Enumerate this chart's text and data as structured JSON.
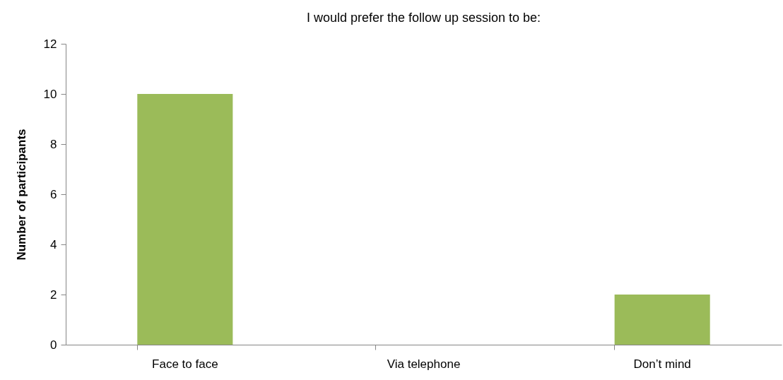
{
  "chart_data": {
    "type": "bar",
    "title": "I would prefer the follow up session to be:",
    "ylabel": "Number of participants",
    "categories": [
      "Face to face",
      "Via telephone",
      "Don’t mind"
    ],
    "values": [
      10,
      0,
      2
    ],
    "color": "#9bbb59",
    "ylim": [
      0,
      12
    ],
    "yticks": [
      0,
      2,
      4,
      6,
      8,
      10,
      12
    ],
    "grid": false
  }
}
